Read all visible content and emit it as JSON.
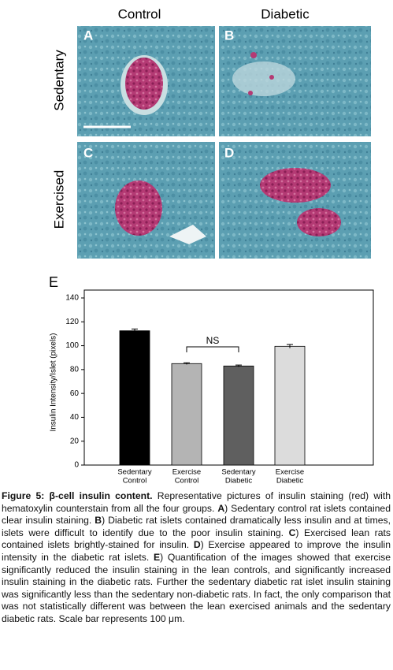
{
  "figure": {
    "column_headers": [
      "Control",
      "Diabetic"
    ],
    "row_labels": [
      "Sedentary",
      "Exercised"
    ],
    "panel_letters": [
      "A",
      "B",
      "C",
      "D"
    ]
  },
  "chart_data": {
    "type": "bar",
    "panel_label": "E",
    "y_label": "Insulin Intensity/Islet (pixels)",
    "categories": [
      [
        "Sedentary",
        "Control"
      ],
      [
        "Exercise",
        "Control"
      ],
      [
        "Sedentary",
        "Diabetic"
      ],
      [
        "Exercise",
        "Diabetic"
      ]
    ],
    "values": [
      112.5,
      85,
      83,
      99.5
    ],
    "errors": [
      1.5,
      0.7,
      0.8,
      1.5
    ],
    "colors": [
      "#000000",
      "#b4b4b4",
      "#5f5f5f",
      "#dcdcdc"
    ],
    "ylim": [
      0,
      140
    ],
    "yticks": [
      0,
      20,
      40,
      60,
      80,
      100,
      120,
      140
    ],
    "annotation": "NS"
  },
  "caption": [
    {
      "text": "Figure 5: β-cell insulin content.",
      "bold": true
    },
    {
      "text": " Representative pictures of insulin staining (red) with hematoxylin counterstain from all the four groups. ",
      "bold": false
    },
    {
      "text": "A",
      "bold": true
    },
    {
      "text": ") Sedentary control rat islets contained clear insulin staining. ",
      "bold": false
    },
    {
      "text": "B",
      "bold": true
    },
    {
      "text": ") Diabetic rat islets contained dramatically less insulin and at times, islets were difficult to identify due to the poor insulin staining. ",
      "bold": false
    },
    {
      "text": "C",
      "bold": true
    },
    {
      "text": ") Exercised lean rats contained islets brightly-stained for insulin. ",
      "bold": false
    },
    {
      "text": "D",
      "bold": true
    },
    {
      "text": ") Exercise appeared to improve the insulin intensity in the diabetic rat islets. ",
      "bold": false
    },
    {
      "text": "E",
      "bold": true
    },
    {
      "text": ") Quantification of the images showed that exercise significantly reduced the insulin staining in the lean controls, and significantly increased insulin staining in the diabetic rats. Further the sedentary diabetic rat islet insulin staining was significantly less than the sedentary non-diabetic rats. In fact, the only comparison that was not statistically different was between the lean exercised animals and the sedentary diabetic rats. Scale bar represents 100 μm.",
      "bold": false
    }
  ]
}
